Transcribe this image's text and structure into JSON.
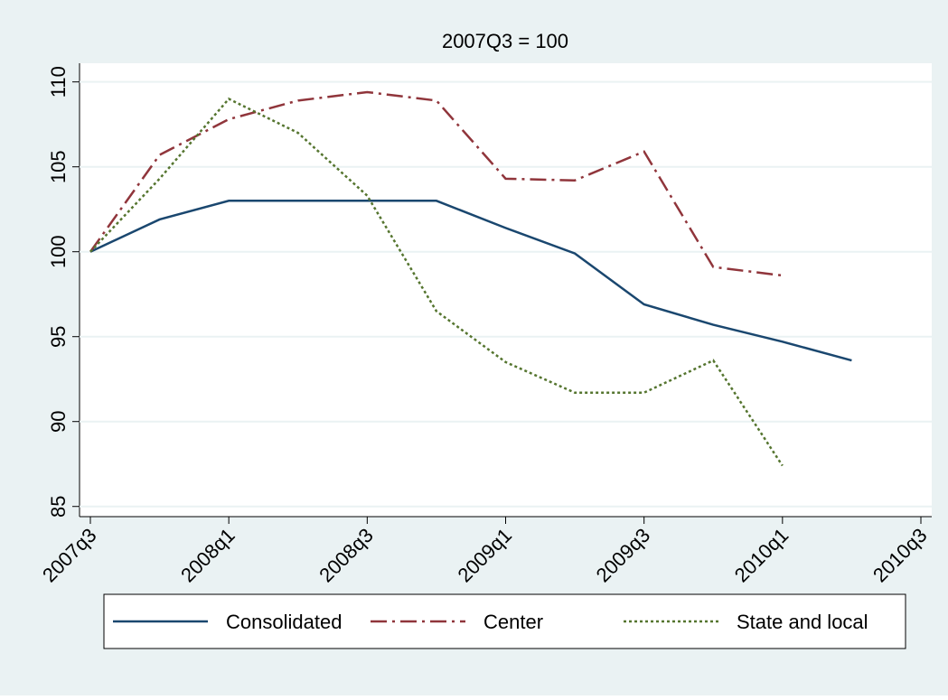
{
  "chart_data": {
    "type": "line",
    "title": "2007Q3 = 100",
    "categories": [
      "2007q3",
      null,
      "2008q1",
      null,
      "2008q3",
      null,
      "2009q1",
      null,
      "2009q3",
      null,
      "2010q1",
      null,
      "2010q3"
    ],
    "series": [
      {
        "name": "Consolidated",
        "color": "#1a476f",
        "dash": "solid",
        "values": [
          100,
          101.9,
          103.0,
          103.0,
          103.0,
          103.0,
          101.4,
          99.9,
          96.9,
          95.7,
          94.7,
          93.6,
          null
        ]
      },
      {
        "name": "Center",
        "color": "#90353b",
        "dash": "dashdot",
        "values": [
          100,
          105.7,
          107.8,
          108.9,
          109.4,
          108.9,
          104.3,
          104.2,
          105.9,
          99.1,
          98.6,
          null,
          null
        ]
      },
      {
        "name": "State and local",
        "color": "#55752f",
        "dash": "dot",
        "values": [
          100,
          104.3,
          109.0,
          107.0,
          103.3,
          96.5,
          93.5,
          91.7,
          91.7,
          93.6,
          87.4,
          null,
          null
        ]
      }
    ],
    "ylim": [
      84.4,
      111.1
    ],
    "yticks": [
      85,
      90,
      95,
      100,
      105,
      110
    ],
    "grid": true,
    "legend": "bottom"
  }
}
